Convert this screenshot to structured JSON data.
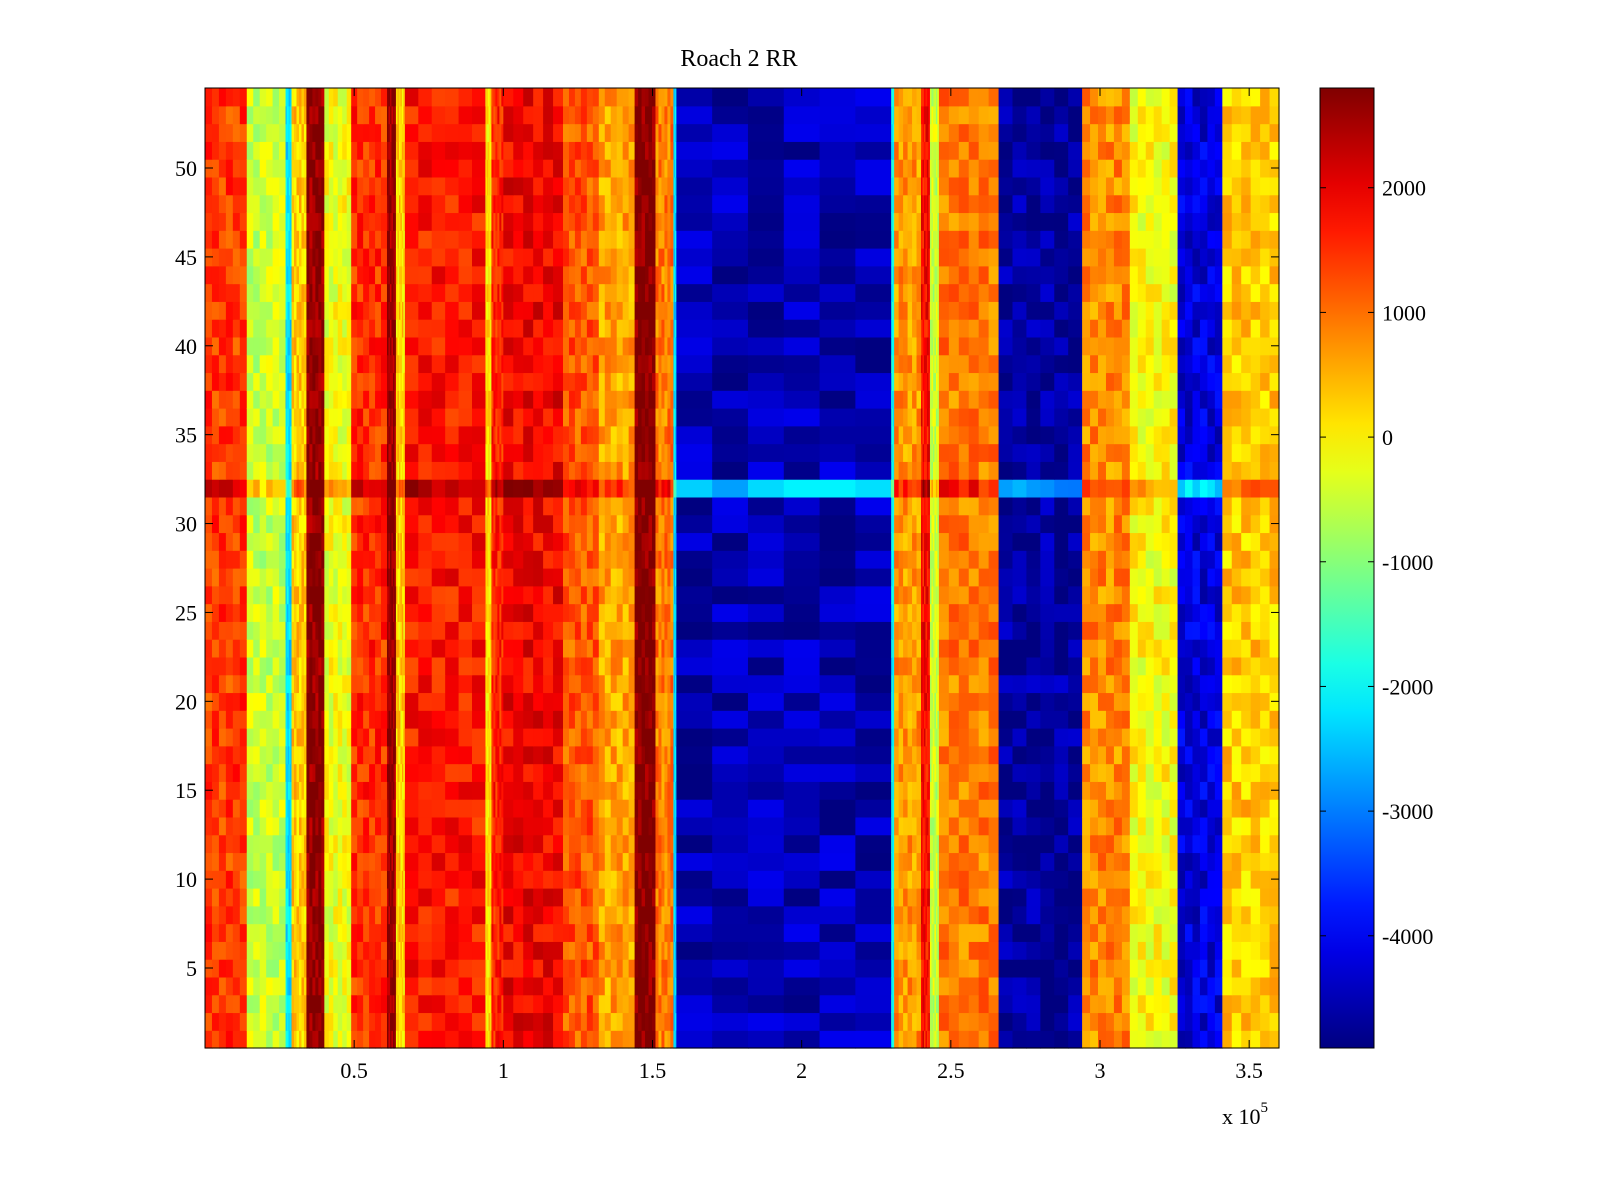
{
  "chart_data": {
    "type": "heatmap",
    "title": "Roach 2 RR",
    "xlabel": "",
    "ylabel": "",
    "x_multiplier_label": "x 10",
    "x_multiplier_exponent": "5",
    "xlim": [
      0,
      3.6
    ],
    "ylim": [
      0.5,
      54.5
    ],
    "xticks": [
      0.5,
      1,
      1.5,
      2,
      2.5,
      3,
      3.5
    ],
    "xtick_labels": [
      "0.5",
      "1",
      "1.5",
      "2",
      "2.5",
      "3",
      "3.5"
    ],
    "yticks": [
      5,
      10,
      15,
      20,
      25,
      30,
      35,
      40,
      45,
      50
    ],
    "ytick_labels": [
      "5",
      "10",
      "15",
      "20",
      "25",
      "30",
      "35",
      "40",
      "45",
      "50"
    ],
    "rows": 54,
    "colormap": "jet",
    "clim": [
      -4900,
      2800
    ],
    "colorbar": {
      "ticks": [
        2000,
        1000,
        0,
        -1000,
        -2000,
        -3000,
        -4000
      ],
      "tick_labels": [
        "2000",
        "1000",
        "0",
        "-1000",
        "-2000",
        "-3000",
        "-4000"
      ]
    },
    "column_bands": [
      {
        "x_start": 0.0,
        "x_end": 0.14,
        "value": 1400
      },
      {
        "x_start": 0.14,
        "x_end": 0.27,
        "value": -500
      },
      {
        "x_start": 0.27,
        "x_end": 0.29,
        "value": -2200
      },
      {
        "x_start": 0.29,
        "x_end": 0.34,
        "value": 300
      },
      {
        "x_start": 0.34,
        "x_end": 0.4,
        "value": 2700
      },
      {
        "x_start": 0.4,
        "x_end": 0.49,
        "value": -200
      },
      {
        "x_start": 0.49,
        "x_end": 0.61,
        "value": 1500
      },
      {
        "x_start": 0.61,
        "x_end": 0.64,
        "value": 2600
      },
      {
        "x_start": 0.64,
        "x_end": 0.67,
        "value": 200
      },
      {
        "x_start": 0.67,
        "x_end": 0.94,
        "value": 1700
      },
      {
        "x_start": 0.94,
        "x_end": 0.96,
        "value": 100
      },
      {
        "x_start": 0.96,
        "x_end": 1.0,
        "value": 1600
      },
      {
        "x_start": 1.0,
        "x_end": 1.2,
        "value": 1900
      },
      {
        "x_start": 1.2,
        "x_end": 1.32,
        "value": 1200
      },
      {
        "x_start": 1.32,
        "x_end": 1.44,
        "value": 600
      },
      {
        "x_start": 1.44,
        "x_end": 1.51,
        "value": 2800
      },
      {
        "x_start": 1.51,
        "x_end": 1.57,
        "value": 900
      },
      {
        "x_start": 1.57,
        "x_end": 1.58,
        "value": -2300
      },
      {
        "x_start": 1.58,
        "x_end": 2.3,
        "value": -4500
      },
      {
        "x_start": 2.3,
        "x_end": 2.31,
        "value": -2000
      },
      {
        "x_start": 2.31,
        "x_end": 2.4,
        "value": 700
      },
      {
        "x_start": 2.4,
        "x_end": 2.43,
        "value": 1800
      },
      {
        "x_start": 2.43,
        "x_end": 2.46,
        "value": -500
      },
      {
        "x_start": 2.46,
        "x_end": 2.66,
        "value": 900
      },
      {
        "x_start": 2.66,
        "x_end": 2.94,
        "value": -4700
      },
      {
        "x_start": 2.94,
        "x_end": 3.1,
        "value": 800
      },
      {
        "x_start": 3.1,
        "x_end": 3.26,
        "value": -100
      },
      {
        "x_start": 3.26,
        "x_end": 3.41,
        "value": -4200
      },
      {
        "x_start": 3.41,
        "x_end": 3.6,
        "value": 300
      }
    ],
    "highlight_row": {
      "row": 32,
      "note": "row with distinct values"
    }
  }
}
